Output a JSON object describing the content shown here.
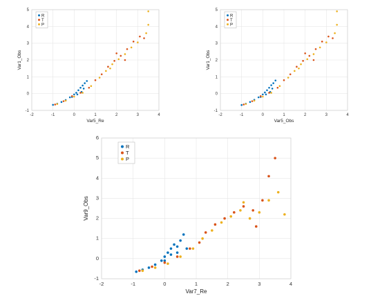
{
  "chart_data": [
    {
      "type": "scatter",
      "xlabel": "Var5_Re",
      "ylabel": "Var1_Obs",
      "xlim": [
        -2,
        4
      ],
      "ylim": [
        -1,
        5
      ],
      "xticks": [
        "-2",
        "-1",
        "0",
        "1",
        "2",
        "3",
        "4"
      ],
      "yticks": [
        "-1",
        "0",
        "1",
        "2",
        "3",
        "4",
        "5"
      ],
      "grid": true,
      "legend_position": "top-left",
      "series": [
        {
          "name": "R",
          "color": "#0072BD",
          "points": [
            [
              -1.0,
              -0.67
            ],
            [
              -0.8,
              -0.6
            ],
            [
              -0.6,
              -0.5
            ],
            [
              -0.4,
              -0.38
            ],
            [
              -0.2,
              -0.22
            ],
            [
              0.0,
              -0.05
            ],
            [
              0.1,
              0.05
            ],
            [
              0.2,
              0.2
            ],
            [
              0.3,
              0.35
            ],
            [
              0.4,
              0.48
            ],
            [
              0.5,
              0.62
            ],
            [
              0.6,
              0.75
            ],
            [
              0.35,
              0.1
            ],
            [
              0.15,
              -0.05
            ],
            [
              -0.1,
              -0.2
            ],
            [
              0.45,
              0.3
            ]
          ]
        },
        {
          "name": "T",
          "color": "#D95319",
          "points": [
            [
              -0.9,
              -0.65
            ],
            [
              -0.5,
              -0.45
            ],
            [
              -0.1,
              -0.15
            ],
            [
              0.3,
              0.05
            ],
            [
              0.7,
              0.35
            ],
            [
              1.0,
              0.8
            ],
            [
              1.3,
              1.15
            ],
            [
              1.6,
              1.6
            ],
            [
              1.9,
              1.95
            ],
            [
              2.2,
              2.25
            ],
            [
              2.5,
              2.65
            ],
            [
              2.8,
              3.1
            ],
            [
              3.1,
              3.4
            ],
            [
              3.3,
              3.3
            ],
            [
              2.4,
              2.0
            ],
            [
              2.0,
              2.4
            ]
          ]
        },
        {
          "name": "P",
          "color": "#EDB120",
          "points": [
            [
              -0.8,
              -0.62
            ],
            [
              -0.4,
              -0.42
            ],
            [
              0.0,
              -0.18
            ],
            [
              0.4,
              0.05
            ],
            [
              0.8,
              0.45
            ],
            [
              1.2,
              0.95
            ],
            [
              1.5,
              1.35
            ],
            [
              1.8,
              1.75
            ],
            [
              2.1,
              2.05
            ],
            [
              2.4,
              2.35
            ],
            [
              2.7,
              2.75
            ],
            [
              3.0,
              3.05
            ],
            [
              3.4,
              3.6
            ],
            [
              3.5,
              4.1
            ],
            [
              3.5,
              4.9
            ],
            [
              1.7,
              1.5
            ]
          ]
        }
      ]
    },
    {
      "type": "scatter",
      "xlabel": "Var5_Obs",
      "ylabel": "Var1_Obs",
      "xlim": [
        -2,
        4
      ],
      "ylim": [
        -1,
        5
      ],
      "xticks": [
        "-2",
        "-1",
        "0",
        "1",
        "2",
        "3",
        "4"
      ],
      "yticks": [
        "-1",
        "0",
        "1",
        "2",
        "3",
        "4",
        "5"
      ],
      "grid": true,
      "legend_position": "top-left",
      "series": [
        {
          "name": "R",
          "color": "#0072BD",
          "points": [
            [
              -1.0,
              -0.68
            ],
            [
              -0.8,
              -0.6
            ],
            [
              -0.6,
              -0.5
            ],
            [
              -0.4,
              -0.37
            ],
            [
              -0.2,
              -0.22
            ],
            [
              0.0,
              -0.05
            ],
            [
              0.1,
              0.07
            ],
            [
              0.2,
              0.2
            ],
            [
              0.3,
              0.35
            ],
            [
              0.4,
              0.5
            ],
            [
              0.5,
              0.62
            ],
            [
              0.6,
              0.78
            ],
            [
              0.35,
              0.1
            ],
            [
              0.15,
              -0.05
            ],
            [
              -0.1,
              -0.2
            ],
            [
              0.45,
              0.3
            ]
          ]
        },
        {
          "name": "T",
          "color": "#D95319",
          "points": [
            [
              -0.9,
              -0.65
            ],
            [
              -0.5,
              -0.45
            ],
            [
              -0.1,
              -0.15
            ],
            [
              0.3,
              0.05
            ],
            [
              0.7,
              0.35
            ],
            [
              1.0,
              0.8
            ],
            [
              1.3,
              1.15
            ],
            [
              1.6,
              1.6
            ],
            [
              1.9,
              1.95
            ],
            [
              2.2,
              2.25
            ],
            [
              2.5,
              2.65
            ],
            [
              2.8,
              3.1
            ],
            [
              3.1,
              3.4
            ],
            [
              3.3,
              3.3
            ],
            [
              2.4,
              2.0
            ],
            [
              2.0,
              2.4
            ]
          ]
        },
        {
          "name": "P",
          "color": "#EDB120",
          "points": [
            [
              -0.8,
              -0.62
            ],
            [
              -0.4,
              -0.42
            ],
            [
              0.0,
              -0.18
            ],
            [
              0.4,
              0.05
            ],
            [
              0.8,
              0.45
            ],
            [
              1.2,
              0.95
            ],
            [
              1.5,
              1.35
            ],
            [
              1.8,
              1.75
            ],
            [
              2.1,
              2.05
            ],
            [
              2.4,
              2.35
            ],
            [
              2.7,
              2.75
            ],
            [
              3.0,
              3.05
            ],
            [
              3.4,
              3.6
            ],
            [
              3.5,
              4.1
            ],
            [
              3.5,
              4.9
            ],
            [
              1.7,
              1.5
            ]
          ]
        }
      ]
    },
    {
      "type": "scatter",
      "xlabel": "Var7_Re",
      "ylabel": "Var9_Obs",
      "xlim": [
        -2,
        4
      ],
      "ylim": [
        -1,
        6
      ],
      "xticks": [
        "-2",
        "-1",
        "0",
        "1",
        "2",
        "3",
        "4"
      ],
      "yticks": [
        "-1",
        "0",
        "1",
        "2",
        "3",
        "4",
        "5",
        "6"
      ],
      "grid": true,
      "legend_position": "top-left",
      "series": [
        {
          "name": "R",
          "color": "#0072BD",
          "points": [
            [
              -0.9,
              -0.65
            ],
            [
              -0.7,
              -0.55
            ],
            [
              -0.5,
              -0.45
            ],
            [
              -0.3,
              -0.3
            ],
            [
              -0.1,
              -0.1
            ],
            [
              0.0,
              0.1
            ],
            [
              0.1,
              0.3
            ],
            [
              0.2,
              0.5
            ],
            [
              0.3,
              0.7
            ],
            [
              0.4,
              0.6
            ],
            [
              0.5,
              0.9
            ],
            [
              0.6,
              1.2
            ],
            [
              0.2,
              0.2
            ],
            [
              0.0,
              -0.1
            ],
            [
              0.4,
              0.3
            ],
            [
              0.7,
              0.5
            ]
          ]
        },
        {
          "name": "T",
          "color": "#D95319",
          "points": [
            [
              -0.8,
              -0.6
            ],
            [
              -0.4,
              -0.4
            ],
            [
              0.0,
              -0.2
            ],
            [
              0.4,
              0.1
            ],
            [
              0.8,
              0.5
            ],
            [
              1.1,
              0.8
            ],
            [
              1.3,
              1.3
            ],
            [
              1.6,
              1.7
            ],
            [
              1.9,
              2.0
            ],
            [
              2.2,
              2.3
            ],
            [
              2.5,
              2.6
            ],
            [
              2.8,
              2.4
            ],
            [
              3.1,
              2.9
            ],
            [
              3.3,
              4.1
            ],
            [
              3.5,
              5.0
            ],
            [
              2.9,
              1.6
            ]
          ]
        },
        {
          "name": "P",
          "color": "#EDB120",
          "points": [
            [
              -0.7,
              -0.6
            ],
            [
              -0.3,
              -0.45
            ],
            [
              0.1,
              -0.25
            ],
            [
              0.5,
              0.1
            ],
            [
              0.9,
              0.5
            ],
            [
              1.2,
              1.0
            ],
            [
              1.5,
              1.4
            ],
            [
              1.8,
              1.8
            ],
            [
              2.1,
              2.1
            ],
            [
              2.4,
              2.4
            ],
            [
              2.7,
              2.0
            ],
            [
              3.0,
              2.3
            ],
            [
              3.3,
              2.9
            ],
            [
              3.6,
              3.3
            ],
            [
              3.8,
              2.2
            ],
            [
              2.5,
              2.8
            ]
          ]
        }
      ]
    }
  ]
}
